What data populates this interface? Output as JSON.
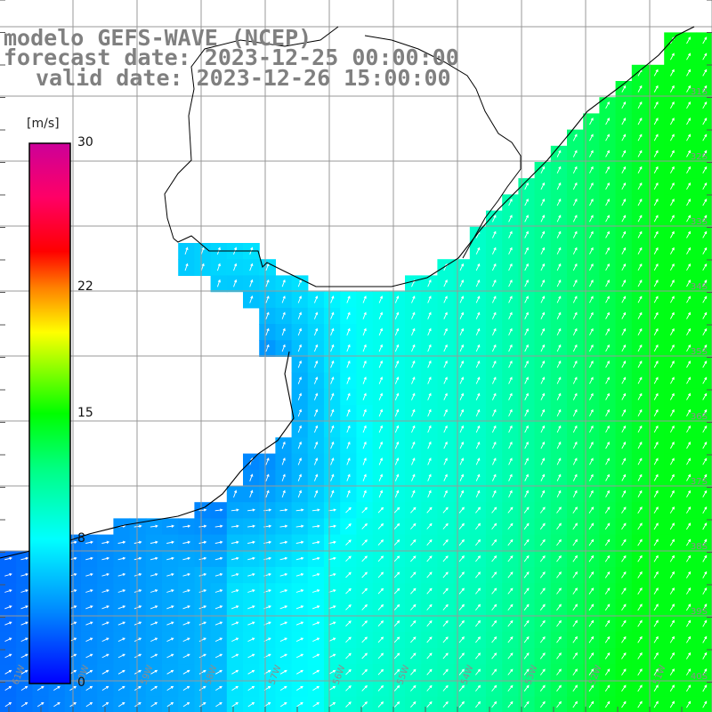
{
  "title": {
    "line1": "modelo GEFS-WAVE (NCEP)",
    "line2": "forecast date: 2023-12-25 00:00:00",
    "line3": "valid date: 2023-12-26 15:00:00"
  },
  "colorbar": {
    "unit": "[m/s]",
    "ticks": [
      "30",
      "22",
      "15",
      "8",
      "0"
    ],
    "tick_values": [
      30,
      22,
      15,
      8,
      0
    ],
    "min": 0,
    "max": 30,
    "stops": [
      {
        "v": 0,
        "color": "#0000ff"
      },
      {
        "v": 4,
        "color": "#0088ff"
      },
      {
        "v": 8,
        "color": "#00ffff"
      },
      {
        "v": 12,
        "color": "#00ff80"
      },
      {
        "v": 15,
        "color": "#00ff00"
      },
      {
        "v": 18,
        "color": "#aaff00"
      },
      {
        "v": 19.5,
        "color": "#ffff00"
      },
      {
        "v": 22,
        "color": "#ff8000"
      },
      {
        "v": 24,
        "color": "#ff0000"
      },
      {
        "v": 27,
        "color": "#ff0066"
      },
      {
        "v": 30,
        "color": "#cc0099"
      }
    ]
  },
  "lat_labels": [
    "31S",
    "32S",
    "33S",
    "34S",
    "35S",
    "36S",
    "37S",
    "38S",
    "39S",
    "40S",
    "41S"
  ],
  "lon_labels": [
    "61W",
    "60W",
    "59W",
    "58W",
    "57W",
    "56W",
    "55W",
    "54W",
    "53W",
    "52W",
    "51W"
  ],
  "colors": {
    "land": "#ffffff",
    "grid": "#999999",
    "coast": "#000000",
    "arrow": "#ffffff"
  }
}
